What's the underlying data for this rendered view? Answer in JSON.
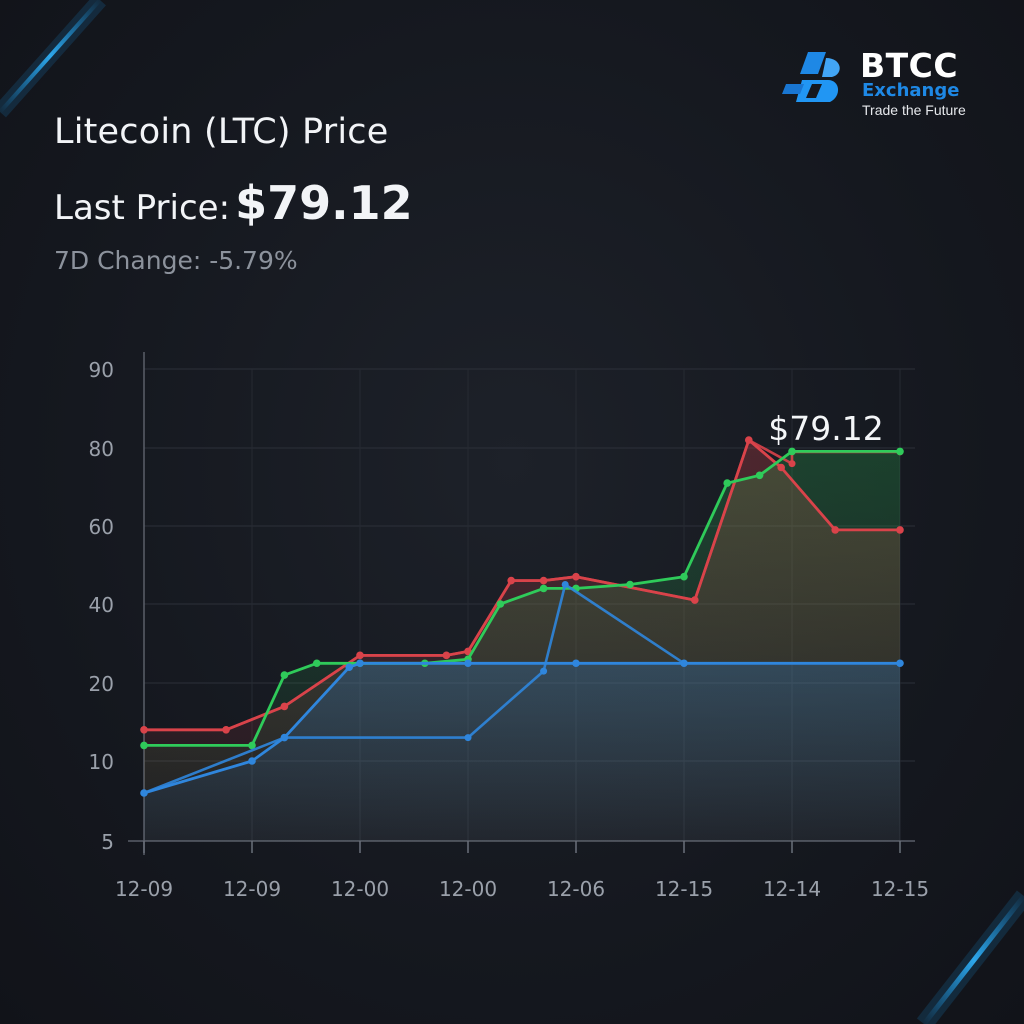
{
  "header": {
    "title": "Litecoin (LTC) Price",
    "last_price_label": "Last Price:",
    "last_price_value": "$79.12",
    "change_text": "7D Change: -5.79%"
  },
  "brand": {
    "name": "BTCC",
    "sub": "Exchange",
    "tagline": "Trade the Future",
    "logo_icon": "btcc-logo-icon",
    "accent": "#1e88e5"
  },
  "chart_data": {
    "type": "line",
    "ytick_labels": [
      "90",
      "80",
      "60",
      "40",
      "20",
      "10",
      "5"
    ],
    "xtick_labels": [
      "12-09",
      "12-09",
      "12-00",
      "12-00",
      "12-06",
      "12-15",
      "12-14",
      "12-15"
    ],
    "grid": true,
    "annotation": "$79.12",
    "series": [
      {
        "color": "#d9434a",
        "points": [
          [
            0,
            14
          ],
          [
            0.38,
            14
          ],
          [
            0.65,
            17
          ],
          [
            1.0,
            27
          ],
          [
            1.4,
            27
          ],
          [
            1.5,
            28
          ],
          [
            1.7,
            46
          ],
          [
            1.85,
            46
          ],
          [
            2.0,
            47
          ],
          [
            2.55,
            41
          ],
          [
            2.8,
            81
          ],
          [
            2.95,
            75
          ],
          [
            3.2,
            59
          ],
          [
            3.5,
            59
          ]
        ],
        "upper_points": [
          [
            0,
            14
          ],
          [
            0.38,
            14
          ],
          [
            0.65,
            17
          ],
          [
            1.0,
            27
          ],
          [
            1.4,
            27
          ],
          [
            1.5,
            28
          ],
          [
            1.7,
            46
          ],
          [
            1.85,
            46
          ],
          [
            2.0,
            47
          ],
          [
            2.55,
            41
          ],
          [
            2.8,
            81
          ],
          [
            3.0,
            76
          ],
          [
            3.0,
            79
          ],
          [
            3.5,
            79
          ]
        ]
      },
      {
        "color": "#2fcb5a",
        "points": [
          [
            0,
            12
          ],
          [
            0.5,
            12
          ],
          [
            0.65,
            22
          ],
          [
            0.8,
            25
          ],
          [
            1.0,
            25
          ],
          [
            1.3,
            25
          ],
          [
            1.5,
            26
          ],
          [
            1.65,
            40
          ],
          [
            1.85,
            44
          ],
          [
            2.0,
            44
          ],
          [
            2.25,
            45
          ],
          [
            2.5,
            47
          ],
          [
            2.7,
            71
          ],
          [
            2.85,
            73
          ],
          [
            3.0,
            79.12
          ],
          [
            3.5,
            79.12
          ]
        ]
      },
      {
        "color": "#2f86dd",
        "points": [
          [
            0,
            8
          ],
          [
            0.5,
            10
          ],
          [
            0.65,
            13
          ],
          [
            0.95,
            24
          ],
          [
            1.0,
            25
          ],
          [
            1.5,
            25
          ],
          [
            2.0,
            25
          ],
          [
            2.5,
            25
          ],
          [
            3.5,
            25
          ]
        ],
        "lower_points": [
          [
            0,
            8
          ],
          [
            0.65,
            13
          ],
          [
            1.5,
            13
          ],
          [
            1.85,
            23
          ],
          [
            1.95,
            45
          ],
          [
            2.5,
            25
          ]
        ]
      }
    ]
  }
}
